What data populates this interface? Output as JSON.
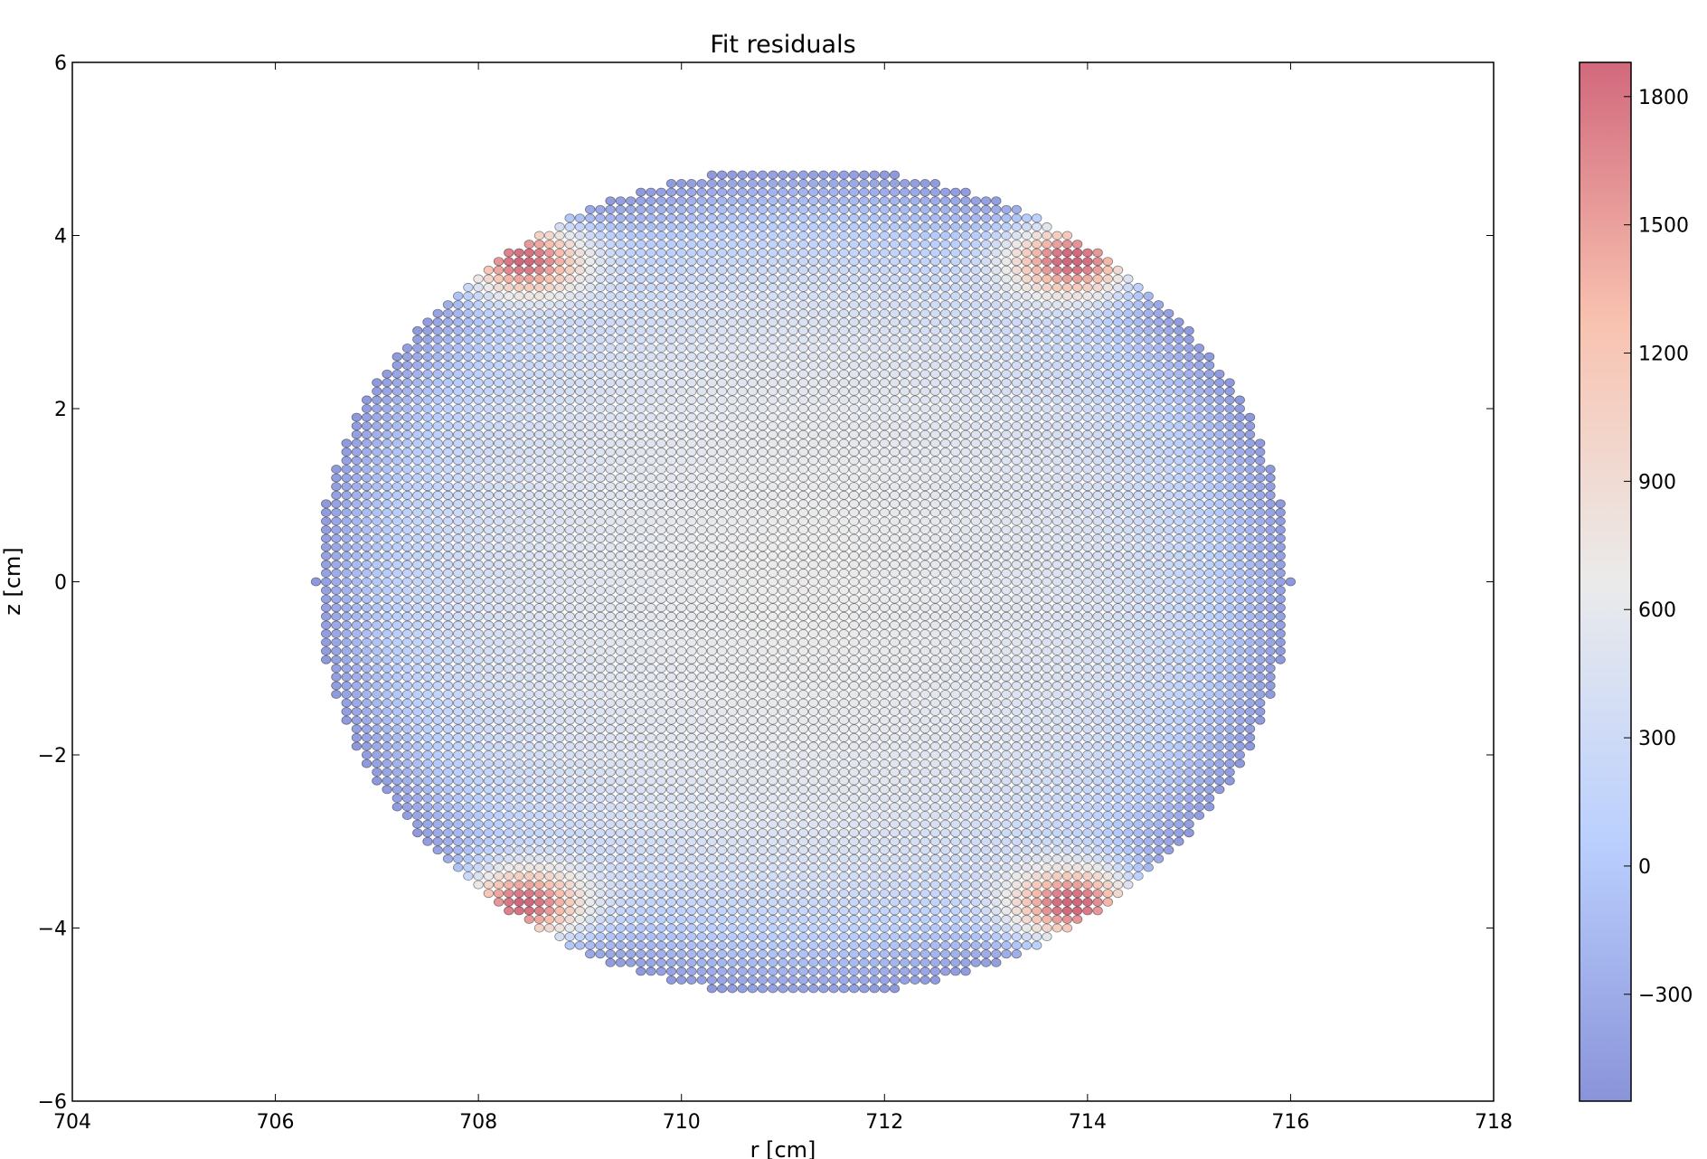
{
  "chart_data": {
    "type": "scatter",
    "title": "Fit residuals",
    "xlabel": "r [cm]",
    "ylabel": "z [cm]",
    "xlim": [
      704,
      718
    ],
    "ylim": [
      -6,
      6
    ],
    "xticks": [
      704,
      706,
      708,
      710,
      712,
      714,
      716,
      718
    ],
    "yticks": [
      -6,
      -4,
      -2,
      0,
      2,
      4,
      6
    ],
    "xtick_labels": [
      "704",
      "706",
      "708",
      "710",
      "712",
      "714",
      "716",
      "718"
    ],
    "ytick_labels": [
      "−6",
      "−4",
      "−2",
      "0",
      "2",
      "4",
      "6"
    ],
    "grid": false,
    "marker": "circle",
    "marker_alpha": 0.6,
    "grid_points": {
      "center": [
        711.2,
        0.0
      ],
      "r_semi_axis": 4.8,
      "z_semi_axis": 4.8,
      "r_step": 0.1,
      "z_step": 0.1
    },
    "colormap": {
      "name": "coolwarm",
      "vmin": -550,
      "vmax": 1880,
      "ticks": [
        -300,
        0,
        300,
        600,
        900,
        1200,
        1500,
        1800
      ],
      "tick_labels": [
        "−300",
        "0",
        "300",
        "600",
        "900",
        "1200",
        "1500",
        "1800"
      ],
      "stops": [
        "#3b4cc0",
        "#8db0fe",
        "#dddddd",
        "#f49a7b",
        "#b40426"
      ]
    },
    "value_structure": {
      "center_value": 560,
      "edge_value": -500,
      "hot_corner_value": 1880,
      "hot_corners": [
        [
          708.4,
          3.75
        ],
        [
          713.9,
          3.75
        ],
        [
          708.4,
          -3.75
        ],
        [
          713.9,
          -3.75
        ]
      ]
    }
  }
}
